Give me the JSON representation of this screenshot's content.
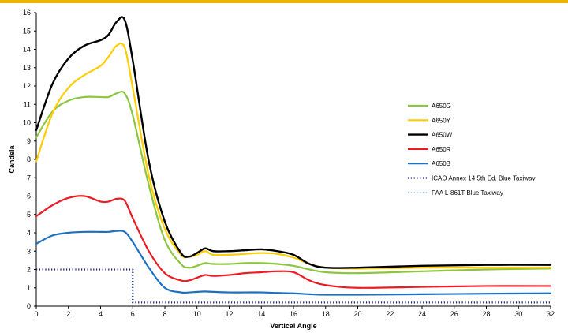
{
  "colors": {
    "top_bar": "#f0b400"
  },
  "chart_data": {
    "type": "line",
    "xlabel": "Vertical Angle",
    "ylabel": "Candela",
    "xlim": [
      0,
      32
    ],
    "ylim": [
      0,
      16
    ],
    "x_ticks": [
      0,
      2,
      4,
      6,
      8,
      10,
      12,
      14,
      16,
      18,
      20,
      22,
      24,
      26,
      28,
      30,
      32
    ],
    "y_ticks": [
      0,
      1,
      2,
      3,
      4,
      5,
      6,
      7,
      8,
      9,
      10,
      11,
      12,
      13,
      14,
      15,
      16
    ],
    "grid": false,
    "legend_position": "right",
    "series": [
      {
        "name": "A650G",
        "color": "#8cc63f",
        "width": 2.2,
        "dash": "solid",
        "x": [
          0,
          1,
          2,
          3,
          4,
          4.5,
          5,
          5.5,
          6,
          7,
          8,
          9,
          9.5,
          10,
          10.5,
          11,
          12,
          13,
          14,
          15,
          16,
          17,
          18,
          20,
          24,
          28,
          32
        ],
        "y": [
          9.2,
          10.6,
          11.2,
          11.4,
          11.4,
          11.4,
          11.6,
          11.6,
          10.4,
          6.6,
          3.6,
          2.3,
          2.1,
          2.2,
          2.35,
          2.3,
          2.3,
          2.35,
          2.35,
          2.3,
          2.2,
          2.0,
          1.85,
          1.8,
          1.9,
          2.0,
          2.05
        ]
      },
      {
        "name": "A650Y",
        "color": "#ffcc00",
        "width": 2.2,
        "dash": "solid",
        "x": [
          0,
          1,
          2,
          3,
          4,
          4.5,
          5,
          5.5,
          6,
          7,
          8,
          9,
          9.5,
          10,
          10.5,
          11,
          12,
          13,
          14,
          15,
          16,
          17,
          18,
          20,
          24,
          28,
          32
        ],
        "y": [
          7.9,
          10.5,
          11.9,
          12.6,
          13.1,
          13.6,
          14.2,
          14.1,
          11.9,
          7.1,
          4.2,
          2.8,
          2.7,
          2.8,
          3.0,
          2.8,
          2.8,
          2.85,
          2.9,
          2.85,
          2.65,
          2.3,
          2.1,
          2.05,
          2.1,
          2.1,
          2.1
        ]
      },
      {
        "name": "A650W",
        "color": "#000000",
        "width": 2.4,
        "dash": "solid",
        "x": [
          0,
          1,
          2,
          3,
          4,
          4.5,
          5,
          5.5,
          6,
          7,
          8,
          9,
          9.5,
          10,
          10.5,
          11,
          12,
          13,
          14,
          15,
          16,
          17,
          18,
          20,
          24,
          28,
          32
        ],
        "y": [
          9.6,
          12.1,
          13.5,
          14.2,
          14.5,
          14.8,
          15.5,
          15.6,
          13.4,
          7.9,
          4.6,
          2.9,
          2.7,
          2.9,
          3.15,
          3.0,
          3.0,
          3.05,
          3.1,
          3.0,
          2.8,
          2.3,
          2.1,
          2.1,
          2.2,
          2.25,
          2.25
        ]
      },
      {
        "name": "A650R",
        "color": "#ed1c24",
        "width": 2.2,
        "dash": "solid",
        "x": [
          0,
          1,
          2,
          3,
          4,
          4.5,
          5,
          5.5,
          6,
          7,
          8,
          9,
          9.5,
          10,
          10.5,
          11,
          12,
          13,
          14,
          15,
          16,
          17,
          18,
          20,
          24,
          28,
          32
        ],
        "y": [
          4.9,
          5.5,
          5.9,
          6.0,
          5.7,
          5.7,
          5.85,
          5.75,
          4.8,
          3.0,
          1.8,
          1.4,
          1.4,
          1.55,
          1.7,
          1.65,
          1.7,
          1.8,
          1.85,
          1.9,
          1.85,
          1.4,
          1.15,
          1.0,
          1.05,
          1.1,
          1.1
        ]
      },
      {
        "name": "A650B",
        "color": "#1f6fc0",
        "width": 2.2,
        "dash": "solid",
        "x": [
          0,
          1,
          2,
          3,
          4,
          4.5,
          5,
          5.5,
          6,
          7,
          8,
          9,
          9.5,
          10,
          10.5,
          11,
          12,
          13,
          14,
          15,
          16,
          17,
          18,
          20,
          24,
          28,
          32
        ],
        "y": [
          3.4,
          3.85,
          4.0,
          4.05,
          4.05,
          4.05,
          4.1,
          4.05,
          3.5,
          2.1,
          1.0,
          0.75,
          0.75,
          0.78,
          0.8,
          0.78,
          0.75,
          0.75,
          0.75,
          0.72,
          0.7,
          0.65,
          0.62,
          0.62,
          0.65,
          0.68,
          0.7
        ]
      },
      {
        "name": "ICAO Annex 14 5th Ed. Blue Taxiway",
        "color": "#1a237e",
        "width": 2.2,
        "dash": "dotted",
        "x": [
          0,
          6,
          6,
          32
        ],
        "y": [
          2,
          2,
          0.2,
          0.2
        ]
      },
      {
        "name": "FAA L-861T Blue Taxiway",
        "color": "#4dc3d8",
        "width": 1.2,
        "dash": "dotted",
        "x": [],
        "y": []
      }
    ]
  }
}
